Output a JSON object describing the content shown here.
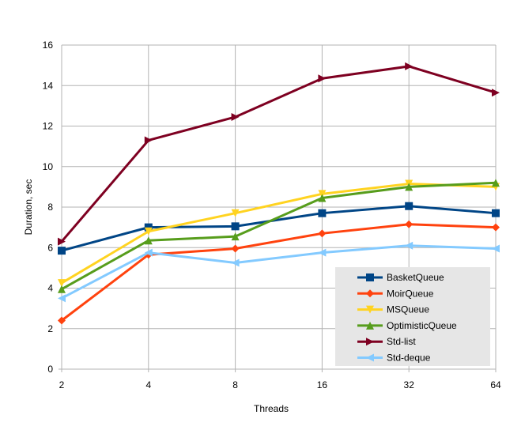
{
  "chart_data": {
    "type": "line",
    "categories": [
      "2",
      "4",
      "8",
      "16",
      "32",
      "64"
    ],
    "xlabel": "Threads",
    "ylabel": "Duration, sec",
    "ylim": [
      0,
      16
    ],
    "yticks": [
      0,
      2,
      4,
      6,
      8,
      10,
      12,
      14,
      16
    ],
    "grid": "vertical and horizontal major lines",
    "legend_position": "bottom-right",
    "series": [
      {
        "name": "BasketQueue",
        "color": "#004586",
        "marker": "square",
        "values": [
          5.85,
          7.0,
          7.05,
          7.7,
          8.05,
          7.7
        ]
      },
      {
        "name": "MoirQueue",
        "color": "#ff420e",
        "marker": "diamond",
        "values": [
          2.4,
          5.65,
          5.95,
          6.7,
          7.15,
          7.0
        ]
      },
      {
        "name": "MSQueue",
        "color": "#ffd320",
        "marker": "triangle-down",
        "values": [
          4.25,
          6.8,
          7.7,
          8.65,
          9.15,
          9.0
        ]
      },
      {
        "name": "OptimisticQueue",
        "color": "#579d1c",
        "marker": "triangle-up",
        "values": [
          3.95,
          6.35,
          6.55,
          8.45,
          9.0,
          9.2
        ]
      },
      {
        "name": "Std-list",
        "color": "#7e0021",
        "marker": "triangle-right",
        "values": [
          6.3,
          11.3,
          12.45,
          14.35,
          14.95,
          13.65
        ]
      },
      {
        "name": "Std-deque",
        "color": "#83caff",
        "marker": "triangle-left",
        "values": [
          3.5,
          5.75,
          5.25,
          5.75,
          6.1,
          5.95
        ]
      }
    ]
  }
}
